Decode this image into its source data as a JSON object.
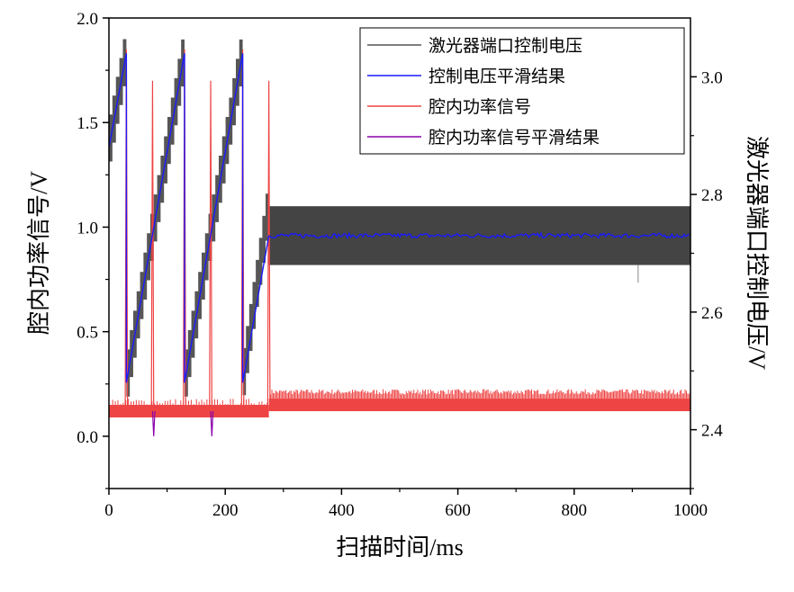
{
  "chart_data": {
    "type": "line",
    "xlabel": "扫描时间/ms",
    "ylabel_left": "腔内功率信号/V",
    "ylabel_right": "激光器端口控制电压/V",
    "xlim": [
      0,
      1000
    ],
    "ylim_left": [
      -0.25,
      2.0
    ],
    "ylim_right": [
      2.3,
      3.1
    ],
    "xticks": [
      0,
      200,
      400,
      600,
      800,
      1000
    ],
    "xtick_labels": [
      "0",
      "200",
      "400",
      "600",
      "800",
      "1000"
    ],
    "yticks_left": [
      0.0,
      0.5,
      1.0,
      1.5,
      2.0
    ],
    "ytick_labels_left": [
      "0.0",
      "0.5",
      "1.0",
      "1.5",
      "2.0"
    ],
    "yticks_right": [
      2.4,
      2.6,
      2.8,
      3.0
    ],
    "ytick_labels_right": [
      "2.4",
      "2.6",
      "2.8",
      "3.0"
    ],
    "grid": false,
    "legend_position": "top-right",
    "sweep_periods_ms": [
      [
        0,
        30
      ],
      [
        30,
        130
      ],
      [
        130,
        230
      ],
      [
        230,
        275
      ]
    ],
    "series": [
      {
        "name": "激光器端口控制电压",
        "color": "#555555",
        "axis": "right",
        "description_points": {
          "sweep_min_V": 2.48,
          "sweep_max_V": 3.04,
          "locked_band_V": [
            2.68,
            2.78
          ],
          "locked_start_ms": 275
        }
      },
      {
        "name": "控制电压平滑结果",
        "color": "#1a1aff",
        "axis": "right",
        "x": [
          0,
          30,
          30,
          130,
          130,
          230,
          230,
          275,
          275,
          1000
        ],
        "y": [
          2.88,
          3.04,
          2.48,
          3.04,
          2.48,
          3.04,
          2.48,
          2.73,
          2.73,
          2.73
        ]
      },
      {
        "name": "腔内功率信号",
        "color": "#ee4444",
        "axis": "left",
        "baseline_band_V": [
          0.09,
          0.15
        ],
        "locked_band_V": [
          0.12,
          0.2
        ],
        "peaks": [
          {
            "x": 30,
            "y": 1.85
          },
          {
            "x": 75,
            "y": 1.7
          },
          {
            "x": 130,
            "y": 1.85
          },
          {
            "x": 175,
            "y": 1.7
          },
          {
            "x": 230,
            "y": 1.85
          },
          {
            "x": 275,
            "y": 1.7
          }
        ]
      },
      {
        "name": "腔内功率信号平滑结果",
        "color": "#8800aa",
        "axis": "left",
        "dips": [
          {
            "x": 77,
            "y": 0.0
          },
          {
            "x": 177,
            "y": 0.0
          }
        ]
      }
    ]
  }
}
